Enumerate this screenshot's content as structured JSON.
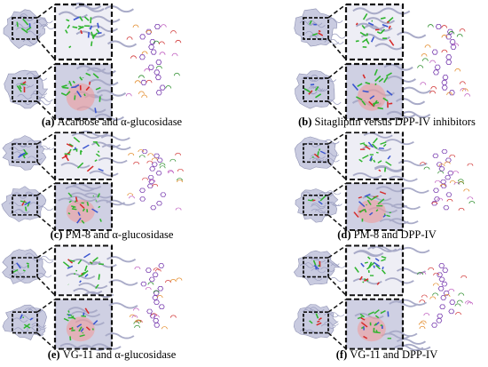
{
  "panels": [
    {
      "label": "(a)",
      "caption": "Acarbose and α-glucosidase"
    },
    {
      "label": "(b)",
      "caption": "Sitagliptin versus DPP-IV inhibitors"
    },
    {
      "label": "(c)",
      "caption": "PM-8 and α-glucosidase"
    },
    {
      "label": "(d)",
      "caption": "PM-8 and DPP-IV"
    },
    {
      "label": "(e)",
      "caption": "VG-11 and α-glucosidase"
    },
    {
      "label": "(f)",
      "caption": "VG-11 and DPP-IV"
    }
  ]
}
